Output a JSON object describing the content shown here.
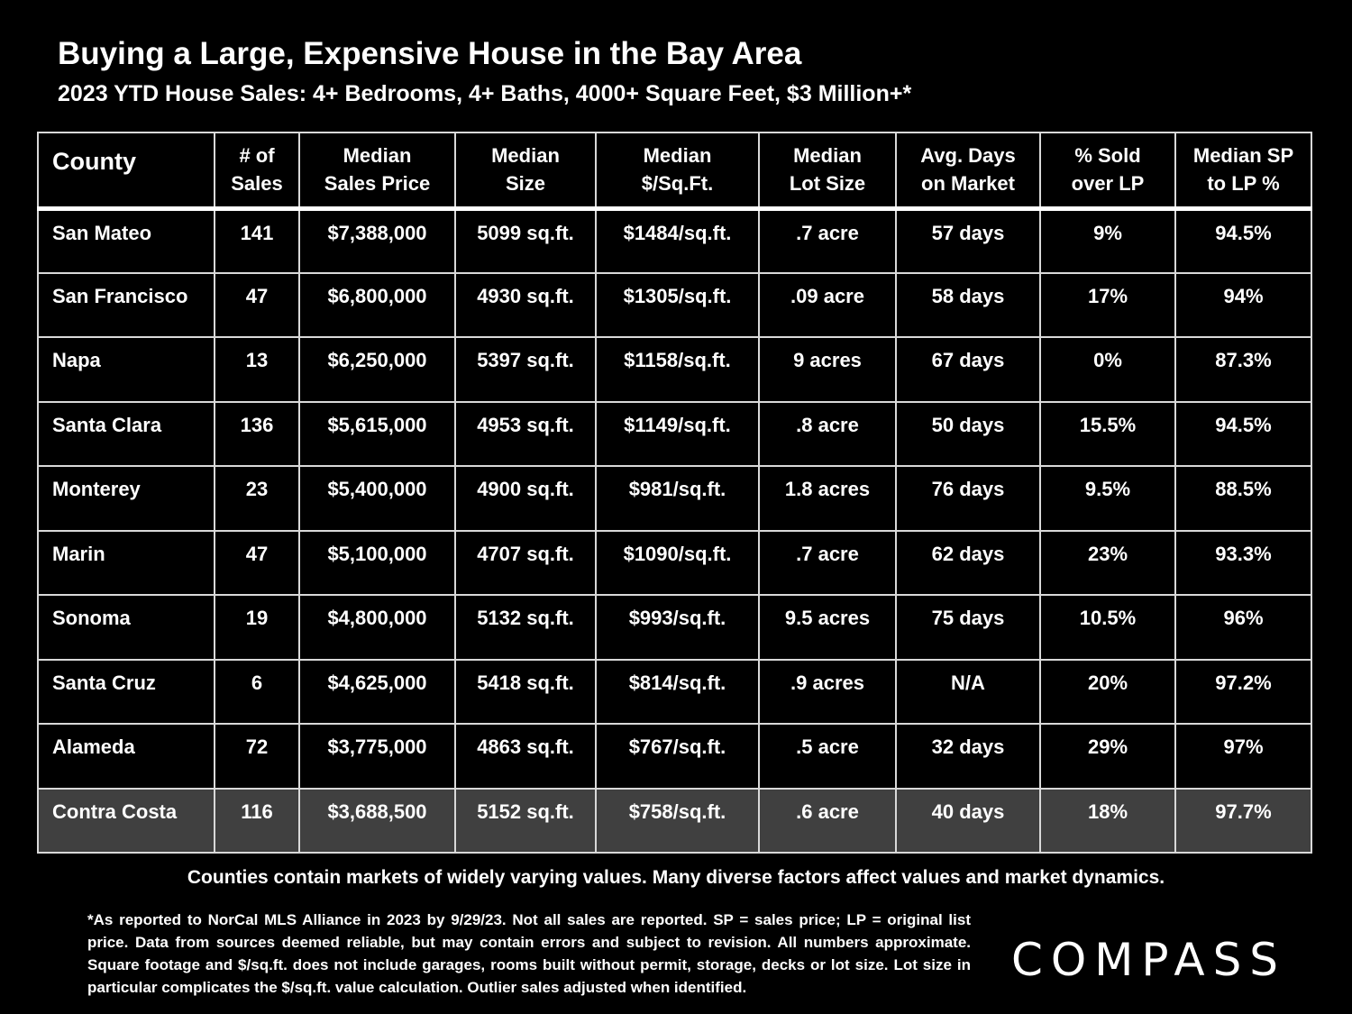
{
  "header": {
    "title": "Buying a Large, Expensive House in the Bay Area",
    "subtitle": "2023 YTD House Sales:  4+ Bedrooms, 4+ Baths, 4000+ Square Feet, $3 Million+*"
  },
  "table": {
    "columns": [
      {
        "line1": "County",
        "line2": ""
      },
      {
        "line1": "# of",
        "line2": "Sales"
      },
      {
        "line1": "Median",
        "line2": "Sales Price"
      },
      {
        "line1": "Median",
        "line2": "Size"
      },
      {
        "line1": "Median",
        "line2": "$/Sq.Ft."
      },
      {
        "line1": "Median",
        "line2": "Lot Size"
      },
      {
        "line1": "Avg. Days",
        "line2": "on Market"
      },
      {
        "line1": "% Sold",
        "line2": "over LP"
      },
      {
        "line1": "Median SP",
        "line2": "to LP %"
      }
    ],
    "rows": [
      {
        "county": "San Mateo",
        "sales": "141",
        "price": "$7,388,000",
        "size": "5099 sq.ft.",
        "ppsf": "$1484/sq.ft.",
        "lot": ".7 acre",
        "dom": "57 days",
        "over": "9%",
        "sp_lp": "94.5%"
      },
      {
        "county": "San Francisco",
        "sales": "47",
        "price": "$6,800,000",
        "size": "4930 sq.ft.",
        "ppsf": "$1305/sq.ft.",
        "lot": ".09 acre",
        "dom": "58 days",
        "over": "17%",
        "sp_lp": "94%"
      },
      {
        "county": "Napa",
        "sales": "13",
        "price": "$6,250,000",
        "size": "5397 sq.ft.",
        "ppsf": "$1158/sq.ft.",
        "lot": "9 acres",
        "dom": "67 days",
        "over": "0%",
        "sp_lp": "87.3%"
      },
      {
        "county": "Santa Clara",
        "sales": "136",
        "price": "$5,615,000",
        "size": "4953 sq.ft.",
        "ppsf": "$1149/sq.ft.",
        "lot": ".8 acre",
        "dom": "50 days",
        "over": "15.5%",
        "sp_lp": "94.5%"
      },
      {
        "county": "Monterey",
        "sales": "23",
        "price": "$5,400,000",
        "size": "4900 sq.ft.",
        "ppsf": "$981/sq.ft.",
        "lot": "1.8 acres",
        "dom": "76 days",
        "over": "9.5%",
        "sp_lp": "88.5%"
      },
      {
        "county": "Marin",
        "sales": "47",
        "price": "$5,100,000",
        "size": "4707 sq.ft.",
        "ppsf": "$1090/sq.ft.",
        "lot": ".7 acre",
        "dom": "62 days",
        "over": "23%",
        "sp_lp": "93.3%"
      },
      {
        "county": "Sonoma",
        "sales": "19",
        "price": "$4,800,000",
        "size": "5132 sq.ft.",
        "ppsf": "$993/sq.ft.",
        "lot": "9.5 acres",
        "dom": "75 days",
        "over": "10.5%",
        "sp_lp": "96%"
      },
      {
        "county": "Santa Cruz",
        "sales": "6",
        "price": "$4,625,000",
        "size": "5418 sq.ft.",
        "ppsf": "$814/sq.ft.",
        "lot": ".9 acres",
        "dom": "N/A",
        "over": "20%",
        "sp_lp": "97.2%"
      },
      {
        "county": "Alameda",
        "sales": "72",
        "price": "$3,775,000",
        "size": "4863 sq.ft.",
        "ppsf": "$767/sq.ft.",
        "lot": ".5 acre",
        "dom": "32 days",
        "over": "29%",
        "sp_lp": "97%"
      },
      {
        "county": "Contra Costa",
        "sales": "116",
        "price": "$3,688,500",
        "size": "5152 sq.ft.",
        "ppsf": "$758/sq.ft.",
        "lot": ".6 acre",
        "dom": "40 days",
        "over": "18%",
        "sp_lp": "97.7%"
      }
    ],
    "highlight_row_color": "#404040"
  },
  "footer": {
    "note": "Counties contain markets of widely varying values. Many diverse factors affect values and market dynamics.",
    "footnote": "*As reported to NorCal MLS Alliance in 2023 by 9/29/23. Not all sales are reported. SP = sales price;  LP = original list price. Data from sources deemed reliable, but may contain errors and subject to revision. All numbers approximate. Square footage and $/sq.ft. does not include garages, rooms built without permit, storage, decks or lot size. Lot size in particular complicates the $/sq.ft. value calculation. Outlier sales adjusted when identified.",
    "logo_text": "COMPASS"
  }
}
